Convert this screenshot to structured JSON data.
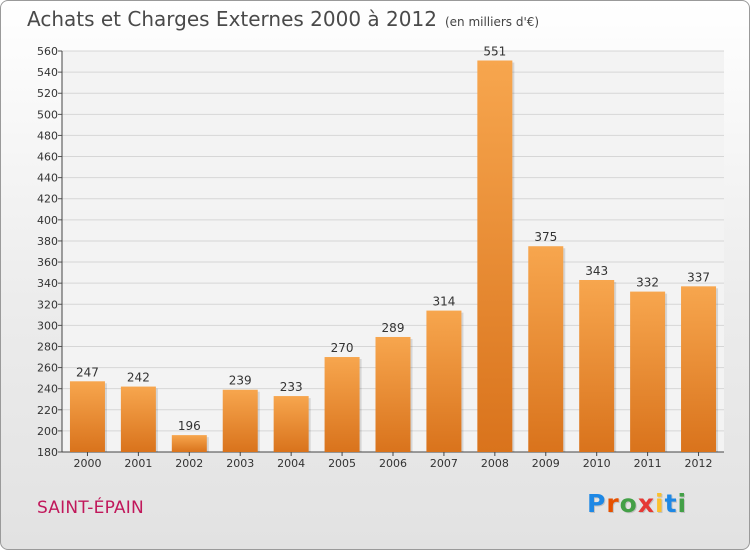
{
  "header": {
    "title": "Achats et Charges Externes 2000 à 2012",
    "unit": "(en milliers d'€)"
  },
  "footer": {
    "place": "SAINT-ÉPAIN",
    "logo": [
      "P",
      "r",
      "o",
      "x",
      "i",
      "t",
      "i"
    ]
  },
  "colors": {
    "bar_light": "#f7a64e",
    "bar_dark": "#d9731c",
    "place": "#c1185b",
    "logo": [
      "#1e88e5",
      "#e65100",
      "#43a047",
      "#e53935",
      "#fbc02d",
      "#1e88e5",
      "#43a047"
    ]
  },
  "chart_data": {
    "type": "bar",
    "title": "Achats et Charges Externes 2000 à 2012",
    "subtitle": "(en milliers d'€)",
    "categories": [
      "2000",
      "2001",
      "2002",
      "2003",
      "2004",
      "2005",
      "2006",
      "2007",
      "2008",
      "2009",
      "2010",
      "2011",
      "2012"
    ],
    "values": [
      247,
      242,
      196,
      239,
      233,
      270,
      289,
      314,
      551,
      375,
      343,
      332,
      337
    ],
    "ylim": [
      180,
      560
    ],
    "yticks": [
      180,
      200,
      220,
      240,
      260,
      280,
      300,
      320,
      340,
      360,
      380,
      400,
      420,
      440,
      460,
      480,
      500,
      520,
      540,
      560
    ],
    "xlabel": "",
    "ylabel": "",
    "grid": true,
    "legend": "none"
  }
}
